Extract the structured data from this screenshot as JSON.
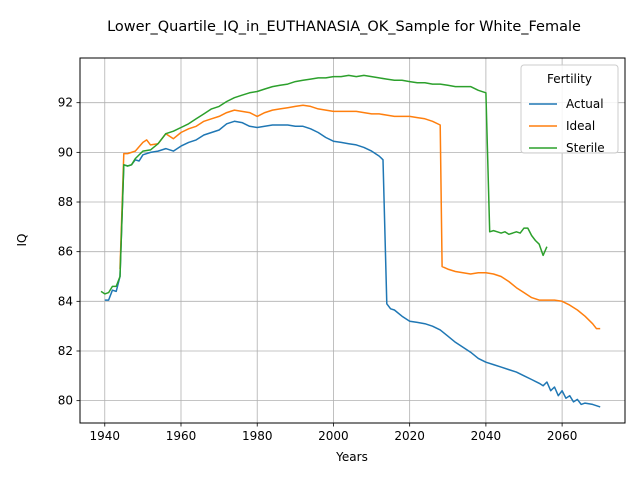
{
  "chart_data": {
    "type": "line",
    "title": "Lower_Quartile_IQ_in_EUTHANASIA_OK_Sample for White_Female",
    "xlabel": "Years",
    "ylabel": "IQ",
    "xlim": [
      1933.5,
      2076.5
    ],
    "ylim": [
      79.1,
      93.8
    ],
    "xticks": [
      1940,
      1960,
      1980,
      2000,
      2020,
      2040,
      2060
    ],
    "yticks": [
      80,
      82,
      84,
      86,
      88,
      90,
      92
    ],
    "grid": true,
    "legend": {
      "title": "Fertility",
      "placement": "upper right"
    },
    "series": [
      {
        "name": "Actual",
        "color": "#1f77b4",
        "points": [
          [
            1940,
            84.05
          ],
          [
            1941,
            84.05
          ],
          [
            1942,
            84.45
          ],
          [
            1943,
            84.4
          ],
          [
            1944,
            85.0
          ],
          [
            1945,
            89.5
          ],
          [
            1946,
            89.45
          ],
          [
            1947,
            89.5
          ],
          [
            1948,
            89.7
          ],
          [
            1949,
            89.65
          ],
          [
            1950,
            89.9
          ],
          [
            1952,
            90.0
          ],
          [
            1954,
            90.05
          ],
          [
            1956,
            90.15
          ],
          [
            1958,
            90.05
          ],
          [
            1960,
            90.25
          ],
          [
            1962,
            90.4
          ],
          [
            1964,
            90.5
          ],
          [
            1966,
            90.7
          ],
          [
            1968,
            90.8
          ],
          [
            1970,
            90.9
          ],
          [
            1972,
            91.15
          ],
          [
            1974,
            91.25
          ],
          [
            1976,
            91.2
          ],
          [
            1978,
            91.05
          ],
          [
            1980,
            91.0
          ],
          [
            1982,
            91.05
          ],
          [
            1984,
            91.1
          ],
          [
            1986,
            91.1
          ],
          [
            1988,
            91.1
          ],
          [
            1990,
            91.05
          ],
          [
            1992,
            91.05
          ],
          [
            1994,
            90.95
          ],
          [
            1996,
            90.8
          ],
          [
            1998,
            90.6
          ],
          [
            2000,
            90.45
          ],
          [
            2002,
            90.4
          ],
          [
            2004,
            90.35
          ],
          [
            2006,
            90.3
          ],
          [
            2008,
            90.2
          ],
          [
            2010,
            90.05
          ],
          [
            2012,
            89.85
          ],
          [
            2013,
            89.7
          ],
          [
            2014,
            83.9
          ],
          [
            2015,
            83.7
          ],
          [
            2016,
            83.65
          ],
          [
            2018,
            83.4
          ],
          [
            2020,
            83.2
          ],
          [
            2022,
            83.15
          ],
          [
            2024,
            83.1
          ],
          [
            2026,
            83.0
          ],
          [
            2028,
            82.85
          ],
          [
            2030,
            82.6
          ],
          [
            2032,
            82.35
          ],
          [
            2034,
            82.15
          ],
          [
            2036,
            81.95
          ],
          [
            2038,
            81.7
          ],
          [
            2040,
            81.55
          ],
          [
            2042,
            81.45
          ],
          [
            2044,
            81.35
          ],
          [
            2046,
            81.25
          ],
          [
            2048,
            81.15
          ],
          [
            2050,
            81.0
          ],
          [
            2052,
            80.85
          ],
          [
            2054,
            80.7
          ],
          [
            2055,
            80.6
          ],
          [
            2056,
            80.75
          ],
          [
            2057,
            80.4
          ],
          [
            2058,
            80.55
          ],
          [
            2059,
            80.2
          ],
          [
            2060,
            80.4
          ],
          [
            2061,
            80.1
          ],
          [
            2062,
            80.2
          ],
          [
            2063,
            79.95
          ],
          [
            2064,
            80.05
          ],
          [
            2065,
            79.85
          ],
          [
            2066,
            79.9
          ],
          [
            2068,
            79.85
          ],
          [
            2070,
            79.75
          ]
        ]
      },
      {
        "name": "Ideal",
        "color": "#ff7f0e",
        "points": [
          [
            1944,
            85.3
          ],
          [
            1945,
            89.95
          ],
          [
            1946,
            89.95
          ],
          [
            1948,
            90.05
          ],
          [
            1950,
            90.4
          ],
          [
            1951,
            90.5
          ],
          [
            1952,
            90.3
          ],
          [
            1954,
            90.35
          ],
          [
            1956,
            90.75
          ],
          [
            1958,
            90.55
          ],
          [
            1960,
            90.8
          ],
          [
            1962,
            90.95
          ],
          [
            1964,
            91.05
          ],
          [
            1966,
            91.25
          ],
          [
            1968,
            91.35
          ],
          [
            1970,
            91.45
          ],
          [
            1972,
            91.6
          ],
          [
            1974,
            91.7
          ],
          [
            1976,
            91.65
          ],
          [
            1978,
            91.6
          ],
          [
            1980,
            91.45
          ],
          [
            1982,
            91.6
          ],
          [
            1984,
            91.7
          ],
          [
            1986,
            91.75
          ],
          [
            1988,
            91.8
          ],
          [
            1990,
            91.85
          ],
          [
            1992,
            91.9
          ],
          [
            1994,
            91.85
          ],
          [
            1996,
            91.75
          ],
          [
            1998,
            91.7
          ],
          [
            2000,
            91.65
          ],
          [
            2002,
            91.65
          ],
          [
            2004,
            91.65
          ],
          [
            2006,
            91.65
          ],
          [
            2008,
            91.6
          ],
          [
            2010,
            91.55
          ],
          [
            2012,
            91.55
          ],
          [
            2014,
            91.5
          ],
          [
            2016,
            91.45
          ],
          [
            2018,
            91.45
          ],
          [
            2020,
            91.45
          ],
          [
            2022,
            91.4
          ],
          [
            2024,
            91.35
          ],
          [
            2026,
            91.25
          ],
          [
            2028,
            91.1
          ],
          [
            2028.5,
            85.4
          ],
          [
            2030,
            85.3
          ],
          [
            2032,
            85.2
          ],
          [
            2034,
            85.15
          ],
          [
            2036,
            85.1
          ],
          [
            2038,
            85.15
          ],
          [
            2040,
            85.15
          ],
          [
            2042,
            85.1
          ],
          [
            2044,
            85.0
          ],
          [
            2046,
            84.8
          ],
          [
            2048,
            84.55
          ],
          [
            2050,
            84.35
          ],
          [
            2052,
            84.15
          ],
          [
            2054,
            84.05
          ],
          [
            2056,
            84.05
          ],
          [
            2058,
            84.05
          ],
          [
            2060,
            84.0
          ],
          [
            2062,
            83.85
          ],
          [
            2064,
            83.65
          ],
          [
            2066,
            83.4
          ],
          [
            2068,
            83.1
          ],
          [
            2069,
            82.9
          ],
          [
            2070,
            82.9
          ]
        ]
      },
      {
        "name": "Sterile",
        "color": "#2ca02c",
        "points": [
          [
            1939,
            84.4
          ],
          [
            1940,
            84.3
          ],
          [
            1941,
            84.35
          ],
          [
            1942,
            84.6
          ],
          [
            1943,
            84.6
          ],
          [
            1944,
            85.0
          ],
          [
            1945,
            89.5
          ],
          [
            1946,
            89.45
          ],
          [
            1947,
            89.5
          ],
          [
            1948,
            89.75
          ],
          [
            1950,
            90.05
          ],
          [
            1952,
            90.1
          ],
          [
            1954,
            90.35
          ],
          [
            1956,
            90.75
          ],
          [
            1958,
            90.85
          ],
          [
            1960,
            91.0
          ],
          [
            1962,
            91.15
          ],
          [
            1964,
            91.35
          ],
          [
            1966,
            91.55
          ],
          [
            1968,
            91.75
          ],
          [
            1970,
            91.85
          ],
          [
            1972,
            92.05
          ],
          [
            1974,
            92.2
          ],
          [
            1976,
            92.3
          ],
          [
            1978,
            92.4
          ],
          [
            1980,
            92.45
          ],
          [
            1982,
            92.55
          ],
          [
            1984,
            92.65
          ],
          [
            1986,
            92.7
          ],
          [
            1988,
            92.75
          ],
          [
            1990,
            92.85
          ],
          [
            1992,
            92.9
          ],
          [
            1994,
            92.95
          ],
          [
            1996,
            93.0
          ],
          [
            1998,
            93.0
          ],
          [
            2000,
            93.05
          ],
          [
            2002,
            93.05
          ],
          [
            2004,
            93.1
          ],
          [
            2006,
            93.05
          ],
          [
            2008,
            93.1
          ],
          [
            2010,
            93.05
          ],
          [
            2012,
            93.0
          ],
          [
            2014,
            92.95
          ],
          [
            2016,
            92.9
          ],
          [
            2018,
            92.9
          ],
          [
            2020,
            92.85
          ],
          [
            2022,
            92.8
          ],
          [
            2024,
            92.8
          ],
          [
            2026,
            92.75
          ],
          [
            2028,
            92.75
          ],
          [
            2030,
            92.7
          ],
          [
            2032,
            92.65
          ],
          [
            2034,
            92.65
          ],
          [
            2036,
            92.65
          ],
          [
            2038,
            92.5
          ],
          [
            2040,
            92.4
          ],
          [
            2041,
            86.8
          ],
          [
            2042,
            86.85
          ],
          [
            2043,
            86.8
          ],
          [
            2044,
            86.75
          ],
          [
            2045,
            86.8
          ],
          [
            2046,
            86.7
          ],
          [
            2047,
            86.75
          ],
          [
            2048,
            86.8
          ],
          [
            2049,
            86.75
          ],
          [
            2050,
            86.95
          ],
          [
            2051,
            86.95
          ],
          [
            2052,
            86.65
          ],
          [
            2053,
            86.45
          ],
          [
            2054,
            86.3
          ],
          [
            2055,
            85.85
          ],
          [
            2056,
            86.2
          ]
        ]
      }
    ]
  }
}
